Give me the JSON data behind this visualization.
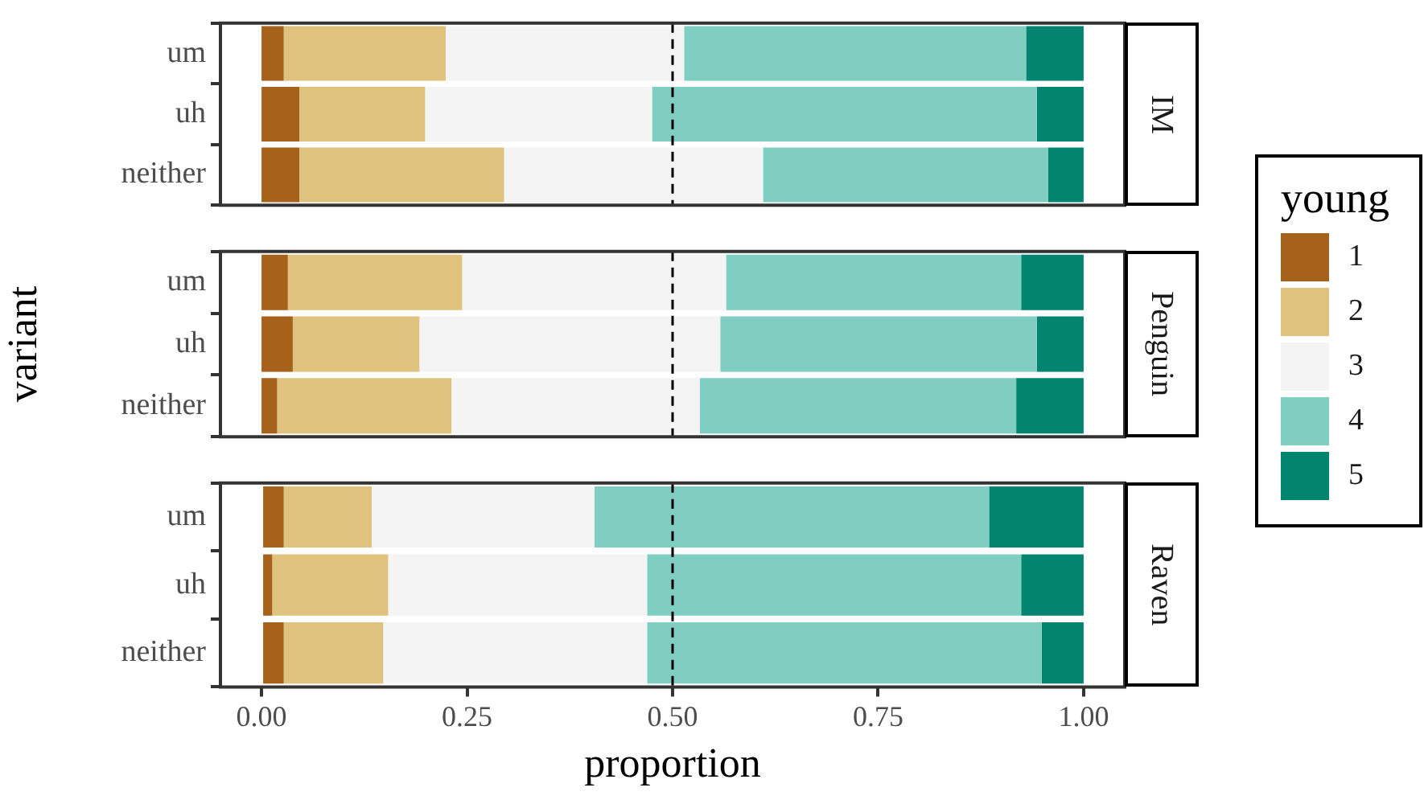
{
  "chart_data": [
    {
      "type": "bar",
      "orientation": "horizontal",
      "stacked": true,
      "annotations": [
        "IM"
      ],
      "categories": [
        "um",
        "uh",
        "neither"
      ],
      "legend": "right",
      "legend_title": "young",
      "tick_labels": "y",
      "xlim": [
        -0.05,
        1.05
      ],
      "ref_lines": [
        {
          "axis": "x",
          "value": 0.5,
          "line_style": "dashed"
        }
      ],
      "series": [
        {
          "name": "1",
          "color": "#a6611a",
          "values": [
            0.027,
            0.046,
            0.046
          ]
        },
        {
          "name": "2",
          "color": "#dfc27d",
          "values": [
            0.197,
            0.153,
            0.249
          ]
        },
        {
          "name": "3",
          "color": "#f4f4f4",
          "values": [
            0.29,
            0.276,
            0.315
          ]
        },
        {
          "name": "4",
          "color": "#80cdc1",
          "values": [
            0.416,
            0.468,
            0.347
          ]
        },
        {
          "name": "5",
          "color": "#018571",
          "values": [
            0.07,
            0.057,
            0.043
          ]
        }
      ]
    },
    {
      "type": "bar",
      "orientation": "horizontal",
      "stacked": true,
      "annotations": [
        "Penguin"
      ],
      "ylabel": "variant",
      "categories": [
        "um",
        "uh",
        "neither"
      ],
      "tick_labels": "y",
      "xlim": [
        -0.05,
        1.05
      ],
      "ref_lines": [
        {
          "axis": "x",
          "value": 0.5,
          "line_style": "dashed"
        }
      ],
      "series": [
        {
          "name": "1",
          "color": "#a6611a",
          "values": [
            0.032,
            0.038,
            0.019
          ]
        },
        {
          "name": "2",
          "color": "#dfc27d",
          "values": [
            0.212,
            0.154,
            0.212
          ]
        },
        {
          "name": "3",
          "color": "#f4f4f4",
          "values": [
            0.321,
            0.366,
            0.302
          ]
        },
        {
          "name": "4",
          "color": "#80cdc1",
          "values": [
            0.359,
            0.385,
            0.385
          ]
        },
        {
          "name": "5",
          "color": "#018571",
          "values": [
            0.076,
            0.057,
            0.082
          ]
        }
      ]
    },
    {
      "type": "bar",
      "orientation": "horizontal",
      "stacked": true,
      "annotations": [
        "Raven"
      ],
      "xlabel": "proportion",
      "categories": [
        "um",
        "uh",
        "neither"
      ],
      "xlim": [
        -0.05,
        1.05
      ],
      "xticks": [
        {
          "value": 0,
          "label": "0.00"
        },
        {
          "value": 0.25,
          "label": "0.25"
        },
        {
          "value": 0.5,
          "label": "0.50"
        },
        {
          "value": 0.75,
          "label": "0.75"
        },
        {
          "value": 1,
          "label": "1.00"
        }
      ],
      "ref_lines": [
        {
          "axis": "x",
          "value": 0.5,
          "line_style": "dashed"
        }
      ],
      "series": [
        {
          "name": "1",
          "color": "#a6611a",
          "values": [
            0.027,
            0.013,
            0.027
          ]
        },
        {
          "name": "2",
          "color": "#dfc27d",
          "values": [
            0.107,
            0.141,
            0.121
          ]
        },
        {
          "name": "3",
          "color": "#f4f4f4",
          "values": [
            0.271,
            0.315,
            0.321
          ]
        },
        {
          "name": "4",
          "color": "#80cdc1",
          "values": [
            0.48,
            0.455,
            0.48
          ]
        },
        {
          "name": "5",
          "color": "#018571",
          "values": [
            0.115,
            0.076,
            0.051
          ]
        }
      ]
    }
  ]
}
